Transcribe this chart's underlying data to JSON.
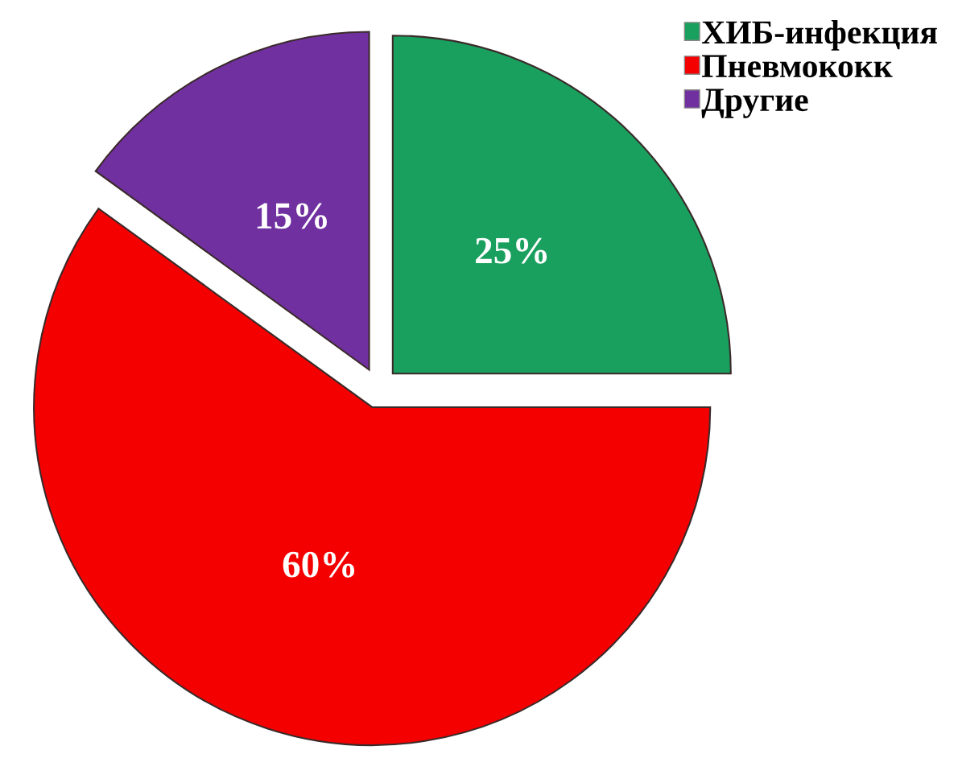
{
  "chart_data": {
    "type": "pie",
    "categories": [
      "ХИБ-инфекция",
      "Пневмококк",
      "Другие"
    ],
    "values": [
      25,
      60,
      15
    ],
    "colors": [
      "#1aa05e",
      "#f50000",
      "#7030a0"
    ],
    "value_labels": [
      "25%",
      "60%",
      "15%"
    ],
    "legend": "top right"
  }
}
